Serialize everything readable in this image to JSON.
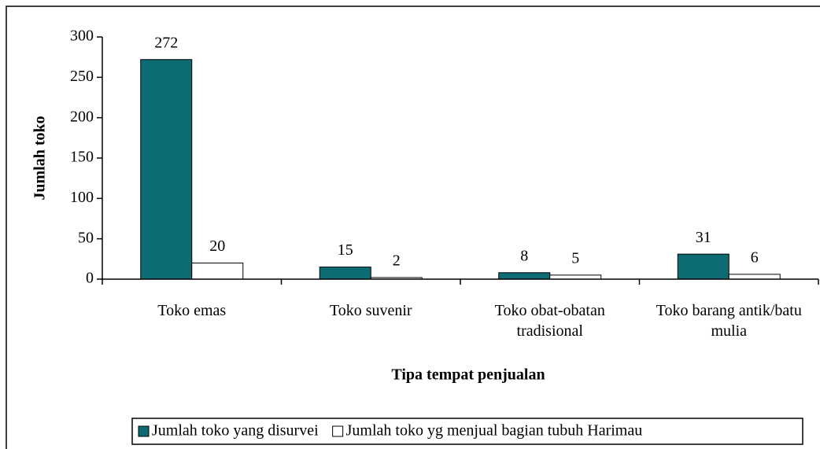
{
  "chart_data": {
    "type": "bar",
    "x_label": "Tipa tempat penjualan",
    "y_label": "Jumlah toko",
    "categories": [
      "Toko emas",
      "Toko suvenir",
      "Toko obat-obatan tradisional",
      "Toko barang antik/batu mulia"
    ],
    "series": [
      {
        "name": "Jumlah toko yang disurvei",
        "color": "#0d6b74",
        "values": [
          272,
          15,
          8,
          31
        ]
      },
      {
        "name": "Jumlah toko yg menjual bagian tubuh Harimau",
        "color": "#ffffff",
        "values": [
          20,
          2,
          5,
          6
        ]
      }
    ],
    "ylim": [
      0,
      300
    ],
    "yticks": [
      0,
      50,
      100,
      150,
      200,
      250,
      300
    ],
    "grid": false,
    "legend": "bottom"
  }
}
